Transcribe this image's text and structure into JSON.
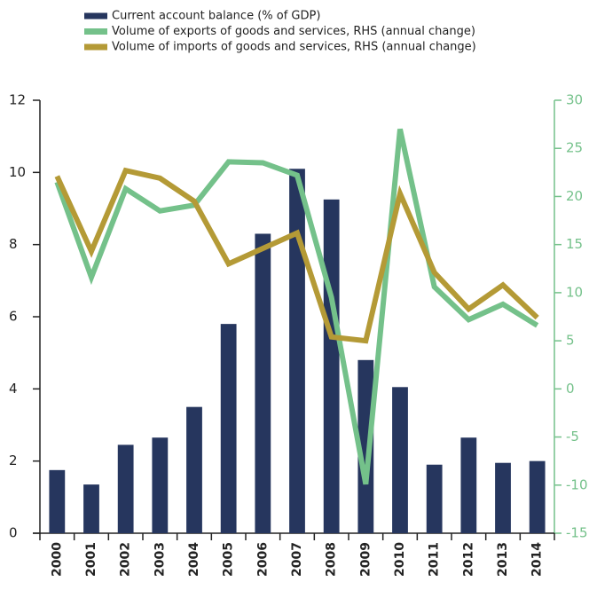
{
  "chart_data": {
    "type": "bar",
    "categories": [
      "2000",
      "2001",
      "2002",
      "2003",
      "2004",
      "2005",
      "2006",
      "2007",
      "2008",
      "2009",
      "2010",
      "2011",
      "2012",
      "2013",
      "2014"
    ],
    "series": [
      {
        "name": "Current account balance (% of GDP)",
        "type": "bar",
        "color": "#26365e",
        "values": [
          1.75,
          1.35,
          2.45,
          2.65,
          3.5,
          5.8,
          8.3,
          10.1,
          9.25,
          4.8,
          4.05,
          1.9,
          2.65,
          1.95,
          2.0
        ]
      },
      {
        "name": "Volume of exports of goods and services, RHS (annual change)",
        "type": "line",
        "axis": "y2",
        "color": "#74c18a",
        "values": [
          21.5,
          11.6,
          20.8,
          18.5,
          19.1,
          23.6,
          23.5,
          22.2,
          9.5,
          -9.9,
          27,
          10.6,
          7.2,
          8.8,
          6.6
        ]
      },
      {
        "name": "Volume of imports of goods and services, RHS (annual change)",
        "type": "line",
        "axis": "y2",
        "color": "#b49a36",
        "values": [
          22.1,
          14.3,
          22.7,
          21.9,
          19.5,
          13.0,
          14.6,
          16.2,
          5.4,
          5.0,
          20.3,
          12.1,
          8.3,
          10.8,
          7.4
        ]
      }
    ],
    "ylim": [
      0,
      12
    ],
    "yticks": [
      0,
      2,
      4,
      6,
      8,
      10,
      12
    ],
    "y2lim": [
      -15,
      30
    ],
    "y2ticks": [
      -15,
      -10,
      -5,
      0,
      5,
      10,
      15,
      20,
      25,
      30
    ]
  }
}
